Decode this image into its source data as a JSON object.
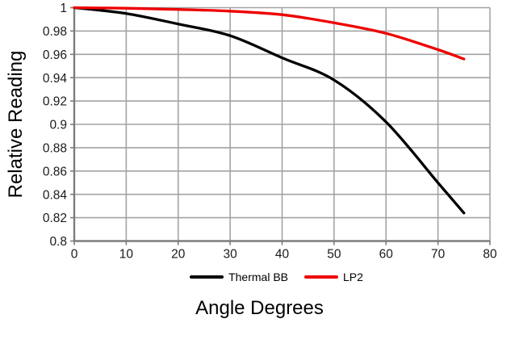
{
  "chart_data": {
    "type": "line",
    "title": "",
    "xlabel": "Angle Degrees",
    "ylabel": "Relative Reading",
    "xlim": [
      0,
      80
    ],
    "ylim": [
      0.8,
      1.0
    ],
    "grid": true,
    "legend_position": "bottom-center",
    "x_tick_values": [
      0,
      10,
      20,
      30,
      40,
      50,
      60,
      70,
      80
    ],
    "x_tick_labels": [
      "0",
      "10",
      "20",
      "30",
      "40",
      "50",
      "60",
      "70",
      "80"
    ],
    "y_tick_values": [
      1,
      0.98,
      0.96,
      0.94,
      0.92,
      0.9,
      0.88,
      0.86,
      0.84,
      0.82,
      0.8
    ],
    "y_tick_labels": [
      "1",
      "0.98",
      "0.96",
      "0.94",
      "0.92",
      "0.9",
      "0.88",
      "0.86",
      "0.84",
      "0.82",
      "0.8"
    ],
    "x": [
      0,
      10,
      20,
      30,
      40,
      50,
      60,
      70,
      75
    ],
    "series": [
      {
        "name": "Thermal BB",
        "color": "#000000",
        "values": [
          1.0,
          0.995,
          0.986,
          0.976,
          0.957,
          0.938,
          0.902,
          0.85,
          0.824
        ]
      },
      {
        "name": "LP2",
        "color": "#ee0000",
        "values": [
          1.0,
          0.9995,
          0.9985,
          0.997,
          0.994,
          0.987,
          0.978,
          0.964,
          0.956
        ]
      }
    ],
    "colors": {
      "grid": "#a3a3a3",
      "axis": "#7d7d7d",
      "tick_text": "#1a1a1a",
      "title_text": "#000000",
      "background": "#ffffff"
    }
  }
}
